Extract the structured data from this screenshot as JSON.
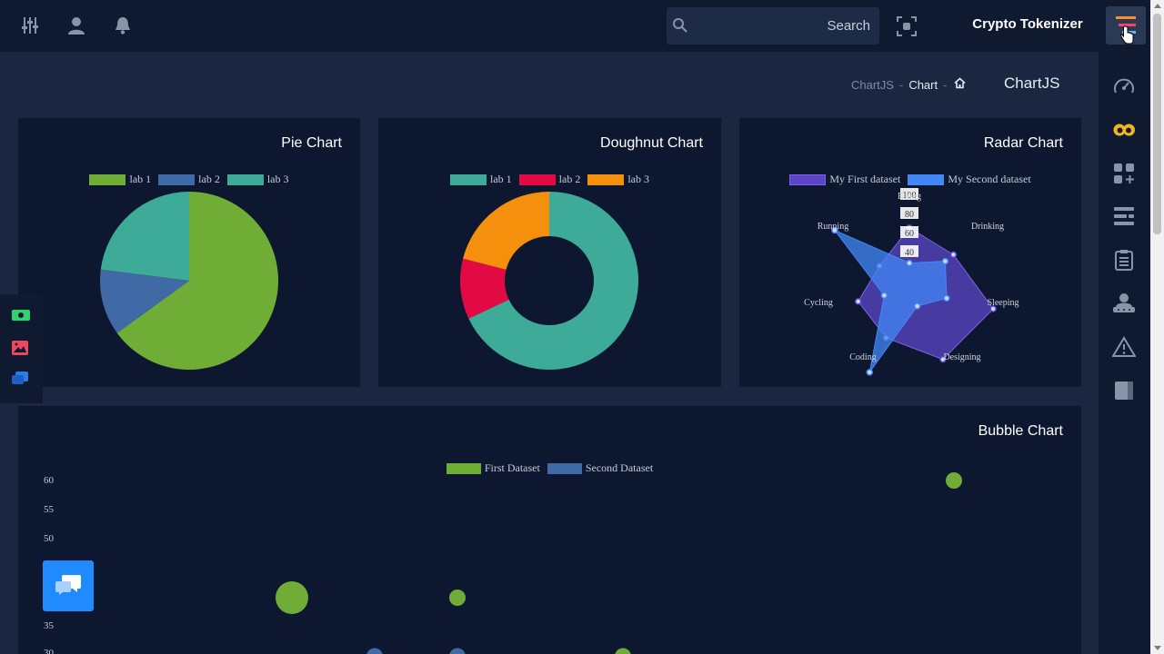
{
  "app": {
    "brand": "Crypto Tokenizer"
  },
  "search": {
    "placeholder": "Search",
    "value": ""
  },
  "breadcrumb": {
    "items": [
      "ChartJS",
      "Chart"
    ],
    "separator": "-"
  },
  "page_title": "ChartJS",
  "cards": {
    "pie": {
      "title": "Pie Chart"
    },
    "doughnut": {
      "title": "Doughnut Chart"
    },
    "radar": {
      "title": "Radar Chart"
    },
    "bubble": {
      "title": "Bubble Chart"
    }
  },
  "colors": {
    "green": "#6fad36",
    "blue": "#3f6aa6",
    "teal": "#3eab99",
    "red": "#e20a44",
    "orange": "#f5900d",
    "purple": "#5b45c6",
    "radar_blue": "#4287f5"
  },
  "chart_data": [
    {
      "type": "pie",
      "title": "Pie Chart",
      "legend": [
        "lab 1",
        "lab 2",
        "lab 3"
      ],
      "values": [
        65,
        12,
        23
      ],
      "colors": [
        "#6fad36",
        "#3f6aa6",
        "#3eab99"
      ]
    },
    {
      "type": "doughnut",
      "title": "Doughnut Chart",
      "legend": [
        "lab 1",
        "lab 2",
        "lab 3"
      ],
      "values": [
        68,
        11,
        21
      ],
      "colors": [
        "#3eab99",
        "#e20a44",
        "#f5900d"
      ]
    },
    {
      "type": "radar",
      "title": "Radar Chart",
      "labels": [
        "Eating",
        "Drinking",
        "Sleeping",
        "Designing",
        "Coding",
        "Cycling",
        "Running"
      ],
      "scale_ticks": [
        "100",
        "80",
        "60",
        "40"
      ],
      "scale_max": 100,
      "series": [
        {
          "name": "My First dataset",
          "values": [
            65,
            59,
            90,
            81,
            56,
            55,
            40
          ],
          "color": "#5b45c6"
        },
        {
          "name": "My Second dataset",
          "values": [
            28,
            48,
            40,
            19,
            96,
            27,
            100
          ],
          "color": "#4287f5"
        }
      ]
    },
    {
      "type": "bubble",
      "title": "Bubble Chart",
      "y_ticks": [
        "60",
        "55",
        "50",
        "35",
        "30"
      ],
      "ylim": [
        30,
        60
      ],
      "series": [
        {
          "name": "First Dataset",
          "color": "#6fad36",
          "points": [
            {
              "x": 20,
              "y": 40,
              "r": 18
            },
            {
              "x": 30,
              "y": 40,
              "r": 9
            },
            {
              "x": 60,
              "y": 60,
              "r": 9
            },
            {
              "x": 40,
              "y": 30,
              "r": 9
            }
          ]
        },
        {
          "name": "Second Dataset",
          "color": "#3f6aa6",
          "points": [
            {
              "x": 25,
              "y": 30,
              "r": 9
            },
            {
              "x": 30,
              "y": 30,
              "r": 9
            }
          ]
        }
      ]
    }
  ],
  "icons": {
    "topbar": [
      "sliders-icon",
      "user-icon",
      "bell-icon",
      "focus-icon",
      "menu-icon"
    ],
    "sidebar": [
      "gauge-icon",
      "eyes-icon",
      "apps-icon",
      "list-icon",
      "clipboard-icon",
      "user-list-icon",
      "warning-icon",
      "book-icon"
    ],
    "float": [
      "money-icon",
      "image-icon",
      "chat-window-icon"
    ]
  }
}
